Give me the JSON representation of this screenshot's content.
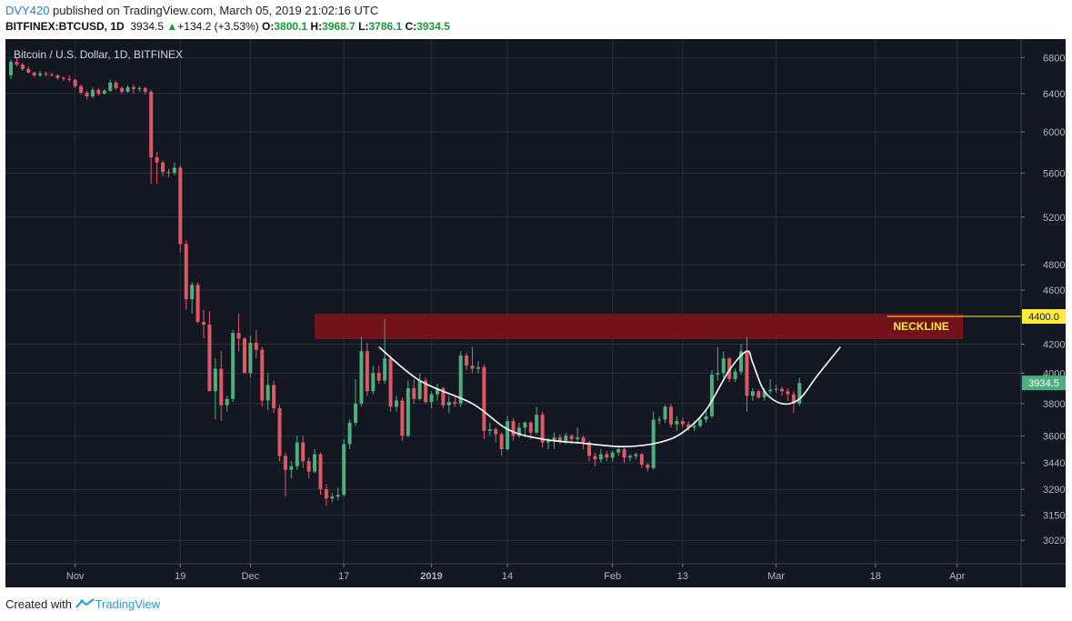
{
  "header": {
    "user": "DVY420",
    "published": " published on TradingView.com, March 05, 2019 21:02:16 UTC",
    "symbol": "BITFINEX:BTCUSD, 1D",
    "last": "3934.5",
    "change_arrow": "▲",
    "change": "+134.2 (+3.53%)",
    "o_label": "O:",
    "o": "3800.1",
    "h_label": "H:",
    "h": "3968.7",
    "l_label": "L:",
    "l": "3786.1",
    "c_label": "C:",
    "c": "3934.5"
  },
  "chart_data": {
    "type": "candlestick",
    "title": "Bitcoin / U.S. Dollar, 1D, BITFINEX",
    "y_scale": "log",
    "ylim": [
      2930,
      6950
    ],
    "y_ticks": [
      "6800.0",
      "6400.0",
      "6000.0",
      "5600.0",
      "5200.0",
      "4800.0",
      "4600.0",
      "4200.0",
      "4000.0",
      "3800.0",
      "3600.0",
      "3440.0",
      "3290.0",
      "3150.0",
      "3020.0"
    ],
    "x_ticks": [
      {
        "label": "Nov",
        "date": "2018-11-01"
      },
      {
        "label": "19",
        "date": "2018-11-19"
      },
      {
        "label": "Dec",
        "date": "2018-12-01"
      },
      {
        "label": "17",
        "date": "2018-12-17"
      },
      {
        "label": "2019",
        "date": "2019-01-01",
        "bold": true
      },
      {
        "label": "14",
        "date": "2019-01-14"
      },
      {
        "label": "Feb",
        "date": "2019-02-01"
      },
      {
        "label": "13",
        "date": "2019-02-13"
      },
      {
        "label": "Mar",
        "date": "2019-03-01"
      },
      {
        "label": "18",
        "date": "2019-03-18"
      },
      {
        "label": "Apr",
        "date": "2019-04-01"
      }
    ],
    "up_color": "#4caf7d",
    "down_color": "#e05866",
    "neckline": {
      "label": "NECKLINE",
      "price": 4400.0,
      "price_label": "4400.0",
      "zone": [
        4235,
        4420
      ],
      "start": "2018-12-12",
      "end": "2019-04-02",
      "zone_color": "#7a1419",
      "label_color": "#ffeb3b"
    },
    "last_price": {
      "value": 3934.5,
      "label": "3934.5",
      "color": "#4caf7d"
    },
    "pattern_curve": [
      [
        "2018-12-23",
        4180
      ],
      [
        "2018-12-30",
        3950
      ],
      [
        "2019-01-08",
        3800
      ],
      [
        "2019-01-14",
        3640
      ],
      [
        "2019-01-20",
        3580
      ],
      [
        "2019-01-27",
        3555
      ],
      [
        "2019-02-03",
        3535
      ],
      [
        "2019-02-09",
        3560
      ],
      [
        "2019-02-13",
        3620
      ],
      [
        "2019-02-17",
        3760
      ],
      [
        "2019-02-21",
        4020
      ],
      [
        "2019-02-24",
        4150
      ],
      [
        "2019-02-25",
        4070
      ],
      [
        "2019-02-27",
        3880
      ],
      [
        "2019-03-02",
        3800
      ],
      [
        "2019-03-05",
        3830
      ],
      [
        "2019-03-08",
        3980
      ],
      [
        "2019-03-12",
        4180
      ]
    ],
    "candles": [
      [
        "2018-10-21",
        6600,
        6780,
        6560,
        6750
      ],
      [
        "2018-10-22",
        6750,
        6790,
        6700,
        6720
      ],
      [
        "2018-10-23",
        6720,
        6740,
        6650,
        6670
      ],
      [
        "2018-10-24",
        6670,
        6700,
        6620,
        6630
      ],
      [
        "2018-10-25",
        6630,
        6640,
        6580,
        6600
      ],
      [
        "2018-10-26",
        6600,
        6650,
        6580,
        6620
      ],
      [
        "2018-10-27",
        6620,
        6640,
        6590,
        6610
      ],
      [
        "2018-10-28",
        6610,
        6630,
        6590,
        6600
      ],
      [
        "2018-10-29",
        6600,
        6610,
        6550,
        6570
      ],
      [
        "2018-10-30",
        6570,
        6590,
        6540,
        6560
      ],
      [
        "2018-10-31",
        6560,
        6600,
        6530,
        6550
      ],
      [
        "2018-11-01",
        6550,
        6560,
        6460,
        6480
      ],
      [
        "2018-11-02",
        6480,
        6500,
        6390,
        6410
      ],
      [
        "2018-11-03",
        6410,
        6430,
        6340,
        6370
      ],
      [
        "2018-11-04",
        6370,
        6470,
        6350,
        6440
      ],
      [
        "2018-11-05",
        6440,
        6460,
        6380,
        6400
      ],
      [
        "2018-11-06",
        6400,
        6450,
        6390,
        6430
      ],
      [
        "2018-11-07",
        6430,
        6550,
        6420,
        6520
      ],
      [
        "2018-11-08",
        6520,
        6540,
        6440,
        6460
      ],
      [
        "2018-11-09",
        6460,
        6480,
        6400,
        6420
      ],
      [
        "2018-11-10",
        6420,
        6490,
        6410,
        6470
      ],
      [
        "2018-11-11",
        6470,
        6500,
        6400,
        6450
      ],
      [
        "2018-11-12",
        6450,
        6480,
        6420,
        6460
      ],
      [
        "2018-11-13",
        6460,
        6470,
        6390,
        6420
      ],
      [
        "2018-11-14",
        6420,
        6440,
        5500,
        5750
      ],
      [
        "2018-11-15",
        5750,
        5800,
        5500,
        5700
      ],
      [
        "2018-11-16",
        5700,
        5720,
        5570,
        5610
      ],
      [
        "2018-11-17",
        5610,
        5640,
        5560,
        5600
      ],
      [
        "2018-11-18",
        5600,
        5700,
        5580,
        5650
      ],
      [
        "2018-11-19",
        5650,
        5670,
        4900,
        4970
      ],
      [
        "2018-11-20",
        4970,
        5000,
        4450,
        4530
      ],
      [
        "2018-11-21",
        4530,
        4660,
        4420,
        4640
      ],
      [
        "2018-11-22",
        4640,
        4660,
        4350,
        4360
      ],
      [
        "2018-11-23",
        4360,
        4450,
        4240,
        4340
      ],
      [
        "2018-11-24",
        4340,
        4440,
        3900,
        3880
      ],
      [
        "2018-11-25",
        3880,
        4100,
        3700,
        4030
      ],
      [
        "2018-11-26",
        4030,
        4150,
        3690,
        3790
      ],
      [
        "2018-11-27",
        3790,
        3850,
        3750,
        3830
      ],
      [
        "2018-11-28",
        3830,
        4300,
        3810,
        4280
      ],
      [
        "2018-11-29",
        4280,
        4420,
        4150,
        4240
      ],
      [
        "2018-11-30",
        4240,
        4250,
        4000,
        4000
      ],
      [
        "2018-12-01",
        4000,
        4260,
        3970,
        4210
      ],
      [
        "2018-12-02",
        4210,
        4300,
        4100,
        4160
      ],
      [
        "2018-12-03",
        4160,
        4180,
        3780,
        3820
      ],
      [
        "2018-12-04",
        3820,
        4000,
        3760,
        3920
      ],
      [
        "2018-12-05",
        3920,
        3950,
        3740,
        3770
      ],
      [
        "2018-12-06",
        3770,
        3790,
        3450,
        3480
      ],
      [
        "2018-12-07",
        3480,
        3500,
        3250,
        3400
      ],
      [
        "2018-12-08",
        3400,
        3450,
        3350,
        3420
      ],
      [
        "2018-12-09",
        3420,
        3600,
        3400,
        3560
      ],
      [
        "2018-12-10",
        3560,
        3600,
        3410,
        3450
      ],
      [
        "2018-12-11",
        3450,
        3470,
        3350,
        3390
      ],
      [
        "2018-12-12",
        3390,
        3520,
        3380,
        3490
      ],
      [
        "2018-12-13",
        3490,
        3500,
        3260,
        3290
      ],
      [
        "2018-12-14",
        3290,
        3320,
        3200,
        3240
      ],
      [
        "2018-12-15",
        3240,
        3270,
        3220,
        3250
      ],
      [
        "2018-12-16",
        3250,
        3300,
        3230,
        3260
      ],
      [
        "2018-12-17",
        3260,
        3580,
        3250,
        3550
      ],
      [
        "2018-12-18",
        3550,
        3700,
        3520,
        3680
      ],
      [
        "2018-12-19",
        3680,
        3960,
        3660,
        3800
      ],
      [
        "2018-12-20",
        3800,
        4250,
        3780,
        4150
      ],
      [
        "2018-12-21",
        4150,
        4210,
        3850,
        3880
      ],
      [
        "2018-12-22",
        3880,
        4050,
        3860,
        4000
      ],
      [
        "2018-12-23",
        4000,
        4050,
        3930,
        3950
      ],
      [
        "2018-12-24",
        3950,
        4380,
        3930,
        4100
      ],
      [
        "2018-12-25",
        4100,
        4120,
        3750,
        3780
      ],
      [
        "2018-12-26",
        3780,
        3850,
        3750,
        3820
      ],
      [
        "2018-12-27",
        3820,
        3840,
        3570,
        3600
      ],
      [
        "2018-12-28",
        3600,
        3950,
        3590,
        3900
      ],
      [
        "2018-12-29",
        3900,
        3960,
        3800,
        3830
      ],
      [
        "2018-12-30",
        3830,
        4000,
        3820,
        3950
      ],
      [
        "2018-12-31",
        3950,
        3970,
        3800,
        3810
      ],
      [
        "2019-01-01",
        3810,
        3880,
        3770,
        3860
      ],
      [
        "2019-01-02",
        3860,
        3930,
        3820,
        3900
      ],
      [
        "2019-01-03",
        3900,
        3910,
        3770,
        3790
      ],
      [
        "2019-01-04",
        3790,
        3850,
        3740,
        3810
      ],
      [
        "2019-01-05",
        3810,
        3860,
        3780,
        3800
      ],
      [
        "2019-01-06",
        3800,
        4150,
        3780,
        4120
      ],
      [
        "2019-01-07",
        4120,
        4140,
        4020,
        4050
      ],
      [
        "2019-01-08",
        4050,
        4180,
        4000,
        4030
      ],
      [
        "2019-01-09",
        4030,
        4080,
        4000,
        4040
      ],
      [
        "2019-01-10",
        4040,
        4060,
        3580,
        3630
      ],
      [
        "2019-01-11",
        3630,
        3680,
        3600,
        3640
      ],
      [
        "2019-01-12",
        3640,
        3650,
        3560,
        3610
      ],
      [
        "2019-01-13",
        3610,
        3620,
        3480,
        3520
      ],
      [
        "2019-01-14",
        3520,
        3720,
        3510,
        3690
      ],
      [
        "2019-01-15",
        3690,
        3710,
        3570,
        3600
      ],
      [
        "2019-01-16",
        3600,
        3680,
        3590,
        3650
      ],
      [
        "2019-01-17",
        3650,
        3690,
        3590,
        3680
      ],
      [
        "2019-01-18",
        3680,
        3690,
        3580,
        3620
      ],
      [
        "2019-01-19",
        3620,
        3780,
        3610,
        3730
      ],
      [
        "2019-01-20",
        3730,
        3750,
        3530,
        3560
      ],
      [
        "2019-01-21",
        3560,
        3590,
        3520,
        3570
      ],
      [
        "2019-01-22",
        3570,
        3620,
        3520,
        3590
      ],
      [
        "2019-01-23",
        3590,
        3610,
        3550,
        3570
      ],
      [
        "2019-01-24",
        3570,
        3620,
        3550,
        3600
      ],
      [
        "2019-01-25",
        3600,
        3610,
        3550,
        3580
      ],
      [
        "2019-01-26",
        3580,
        3650,
        3560,
        3590
      ],
      [
        "2019-01-27",
        3590,
        3600,
        3520,
        3560
      ],
      [
        "2019-01-28",
        3560,
        3570,
        3450,
        3480
      ],
      [
        "2019-01-29",
        3480,
        3500,
        3420,
        3460
      ],
      [
        "2019-01-30",
        3460,
        3520,
        3440,
        3490
      ],
      [
        "2019-01-31",
        3490,
        3510,
        3450,
        3470
      ],
      [
        "2019-02-01",
        3470,
        3510,
        3450,
        3500
      ],
      [
        "2019-02-02",
        3500,
        3530,
        3480,
        3520
      ],
      [
        "2019-02-03",
        3520,
        3530,
        3440,
        3470
      ],
      [
        "2019-02-04",
        3470,
        3490,
        3450,
        3480
      ],
      [
        "2019-02-05",
        3480,
        3500,
        3460,
        3490
      ],
      [
        "2019-02-06",
        3490,
        3500,
        3410,
        3430
      ],
      [
        "2019-02-07",
        3430,
        3440,
        3390,
        3410
      ],
      [
        "2019-02-08",
        3410,
        3750,
        3400,
        3700
      ],
      [
        "2019-02-09",
        3700,
        3720,
        3670,
        3700
      ],
      [
        "2019-02-10",
        3700,
        3790,
        3680,
        3780
      ],
      [
        "2019-02-11",
        3780,
        3800,
        3650,
        3670
      ],
      [
        "2019-02-12",
        3670,
        3720,
        3630,
        3690
      ],
      [
        "2019-02-13",
        3690,
        3710,
        3650,
        3670
      ],
      [
        "2019-02-14",
        3670,
        3690,
        3630,
        3650
      ],
      [
        "2019-02-15",
        3650,
        3690,
        3630,
        3660
      ],
      [
        "2019-02-16",
        3660,
        3720,
        3650,
        3700
      ],
      [
        "2019-02-17",
        3700,
        3750,
        3680,
        3720
      ],
      [
        "2019-02-18",
        3720,
        4020,
        3710,
        3990
      ],
      [
        "2019-02-19",
        3990,
        4180,
        3950,
        4000
      ],
      [
        "2019-02-20",
        4000,
        4150,
        3970,
        4100
      ],
      [
        "2019-02-21",
        4100,
        4110,
        3940,
        3960
      ],
      [
        "2019-02-22",
        3960,
        4030,
        3940,
        4010
      ],
      [
        "2019-02-23",
        4010,
        4200,
        3990,
        4150
      ],
      [
        "2019-02-24",
        4150,
        4250,
        3750,
        3850
      ],
      [
        "2019-02-25",
        3850,
        3900,
        3820,
        3880
      ],
      [
        "2019-02-26",
        3880,
        3890,
        3830,
        3840
      ],
      [
        "2019-02-27",
        3840,
        3900,
        3820,
        3880
      ],
      [
        "2019-02-28",
        3880,
        3960,
        3860,
        3890
      ],
      [
        "2019-03-01",
        3890,
        3920,
        3870,
        3895
      ],
      [
        "2019-03-02",
        3895,
        3910,
        3850,
        3880
      ],
      [
        "2019-03-03",
        3880,
        3900,
        3820,
        3860
      ],
      [
        "2019-03-04",
        3860,
        3880,
        3740,
        3800
      ],
      [
        "2019-03-05",
        3800.1,
        3968.7,
        3786.1,
        3934.5
      ]
    ]
  },
  "footer": {
    "created": "Created with",
    "brand": "TradingView"
  }
}
